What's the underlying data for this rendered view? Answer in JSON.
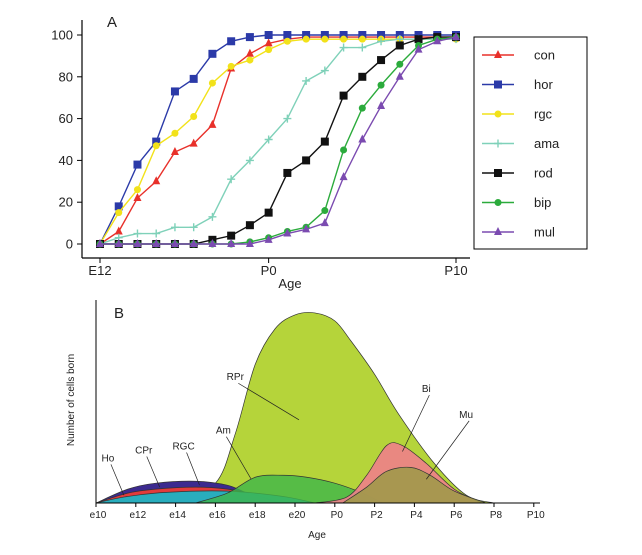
{
  "panel_a_letter": "A",
  "panel_b_letter": "B",
  "chart_data": [
    {
      "type": "line",
      "xlabel": "Age",
      "ylabel": "",
      "ylim": [
        0,
        100
      ],
      "yticks": [
        0,
        20,
        40,
        60,
        80,
        100
      ],
      "xticks": [
        {
          "label": "E12",
          "x": 0
        },
        {
          "label": "P0",
          "x": 9
        },
        {
          "label": "P10",
          "x": 19
        }
      ],
      "xlim": [
        -1,
        21
      ],
      "legend_position": "right",
      "series": [
        {
          "name": "con",
          "color": "#e8302a",
          "marker": "triangle",
          "x": [
            0,
            1,
            2,
            3,
            4,
            5,
            6,
            7,
            8,
            9,
            10,
            11,
            12,
            13,
            14,
            15,
            16,
            17,
            18,
            19
          ],
          "y": [
            0,
            6,
            22,
            30,
            44,
            48,
            57,
            84,
            91,
            96,
            98,
            99,
            99,
            99,
            99,
            99,
            99,
            99,
            99,
            99
          ]
        },
        {
          "name": "hor",
          "color": "#2b3aa8",
          "marker": "square",
          "x": [
            0,
            1,
            2,
            3,
            4,
            5,
            6,
            7,
            8,
            9,
            10,
            11,
            12,
            13,
            14,
            15,
            16,
            17,
            18,
            19
          ],
          "y": [
            0,
            18,
            38,
            49,
            73,
            79,
            91,
            97,
            99,
            100,
            100,
            100,
            100,
            100,
            100,
            100,
            100,
            100,
            100,
            100
          ]
        },
        {
          "name": "rgc",
          "color": "#f2e21a",
          "marker": "circle",
          "x": [
            0,
            1,
            2,
            3,
            4,
            5,
            6,
            7,
            8,
            9,
            10,
            11,
            12,
            13,
            14,
            15,
            16,
            17,
            18,
            19
          ],
          "y": [
            0,
            15,
            26,
            47,
            53,
            61,
            77,
            85,
            88,
            93,
            97,
            98,
            98,
            98,
            98,
            98,
            98,
            98,
            98,
            98
          ]
        },
        {
          "name": "ama",
          "color": "#7fd1b9",
          "marker": "plus",
          "x": [
            0,
            1,
            2,
            3,
            4,
            5,
            6,
            7,
            8,
            9,
            10,
            11,
            12,
            13,
            14,
            15,
            16,
            17,
            18,
            19
          ],
          "y": [
            0,
            3,
            5,
            5,
            8,
            8,
            13,
            31,
            40,
            50,
            60,
            78,
            83,
            94,
            94,
            97,
            98,
            98,
            98,
            98
          ]
        },
        {
          "name": "rod",
          "color": "#111111",
          "marker": "square",
          "x": [
            0,
            1,
            2,
            3,
            4,
            5,
            6,
            7,
            8,
            9,
            10,
            11,
            12,
            13,
            14,
            15,
            16,
            17,
            18,
            19
          ],
          "y": [
            0,
            0,
            0,
            0,
            0,
            0,
            2,
            4,
            9,
            15,
            34,
            40,
            49,
            71,
            80,
            88,
            95,
            98,
            99,
            99
          ]
        },
        {
          "name": "bip",
          "color": "#2bab3c",
          "marker": "circle",
          "x": [
            0,
            1,
            2,
            3,
            4,
            5,
            6,
            7,
            8,
            9,
            10,
            11,
            12,
            13,
            14,
            15,
            16,
            17,
            18,
            19
          ],
          "y": [
            0,
            0,
            0,
            0,
            0,
            0,
            0,
            0,
            1,
            3,
            6,
            8,
            16,
            45,
            65,
            76,
            86,
            95,
            98,
            99
          ]
        },
        {
          "name": "mul",
          "color": "#7b4bb0",
          "marker": "triangle",
          "x": [
            0,
            1,
            2,
            3,
            4,
            5,
            6,
            7,
            8,
            9,
            10,
            11,
            12,
            13,
            14,
            15,
            16,
            17,
            18,
            19
          ],
          "y": [
            0,
            0,
            0,
            0,
            0,
            0,
            0,
            0,
            0,
            2,
            5,
            7,
            10,
            32,
            50,
            66,
            80,
            93,
            97,
            99
          ]
        }
      ]
    },
    {
      "type": "area",
      "xlabel": "Age",
      "ylabel": "Number of cells born",
      "categories": [
        "e10",
        "e12",
        "e14",
        "e16",
        "e18",
        "e20",
        "P0",
        "P2",
        "P4",
        "P6",
        "P8",
        "P10"
      ],
      "ylim": [
        0,
        100
      ],
      "series": [
        {
          "name": "RPr",
          "color": "#b5d43a",
          "x": [
            0,
            2,
            3,
            3.5,
            4,
            4.5,
            5,
            5.5,
            6,
            6.4,
            7,
            7.6,
            8.5,
            9.3,
            10
          ],
          "y": [
            0,
            2,
            10,
            35,
            70,
            88,
            95,
            96,
            92,
            82,
            65,
            45,
            20,
            4,
            0
          ]
        },
        {
          "name": "Ho",
          "color": "#3c2a8f",
          "x": [
            0,
            0.8,
            1.5,
            2.5,
            3.3,
            3.8,
            4.6
          ],
          "y": [
            0,
            7,
            10,
            11,
            9,
            5,
            0
          ]
        },
        {
          "name": "CPr",
          "color": "#e23b3b",
          "x": [
            0,
            0.8,
            1.5,
            2.5,
            3.3,
            4,
            4.6
          ],
          "y": [
            0,
            5,
            7,
            8,
            7,
            4,
            0
          ]
        },
        {
          "name": "RGC",
          "color": "#1fb3c4",
          "x": [
            0,
            0.7,
            1.5,
            2.5,
            3.3,
            4,
            4.8,
            5.5
          ],
          "y": [
            0,
            3,
            5,
            6,
            6,
            5,
            3,
            0
          ]
        },
        {
          "name": "Am",
          "color": "#3fb54a",
          "x": [
            2.5,
            3.3,
            4,
            4.7,
            5.3,
            6,
            6.7,
            7.2
          ],
          "y": [
            0,
            5,
            13,
            14,
            13,
            10,
            5,
            0
          ]
        },
        {
          "name": "Bi",
          "color": "#ee7f8a",
          "x": [
            5.5,
            6.3,
            6.8,
            7.3,
            7.7,
            8.3,
            9,
            9.7
          ],
          "y": [
            0,
            3,
            14,
            29,
            29,
            20,
            7,
            0
          ]
        },
        {
          "name": "Mu",
          "color": "#9c9a48",
          "x": [
            6.2,
            6.8,
            7.3,
            7.9,
            8.4,
            9,
            9.8
          ],
          "y": [
            0,
            8,
            16,
            18,
            14,
            6,
            0
          ]
        }
      ],
      "annotations": [
        "Ho",
        "CPr",
        "RGC",
        "Am",
        "RPr",
        "Bi",
        "Mu"
      ]
    }
  ]
}
